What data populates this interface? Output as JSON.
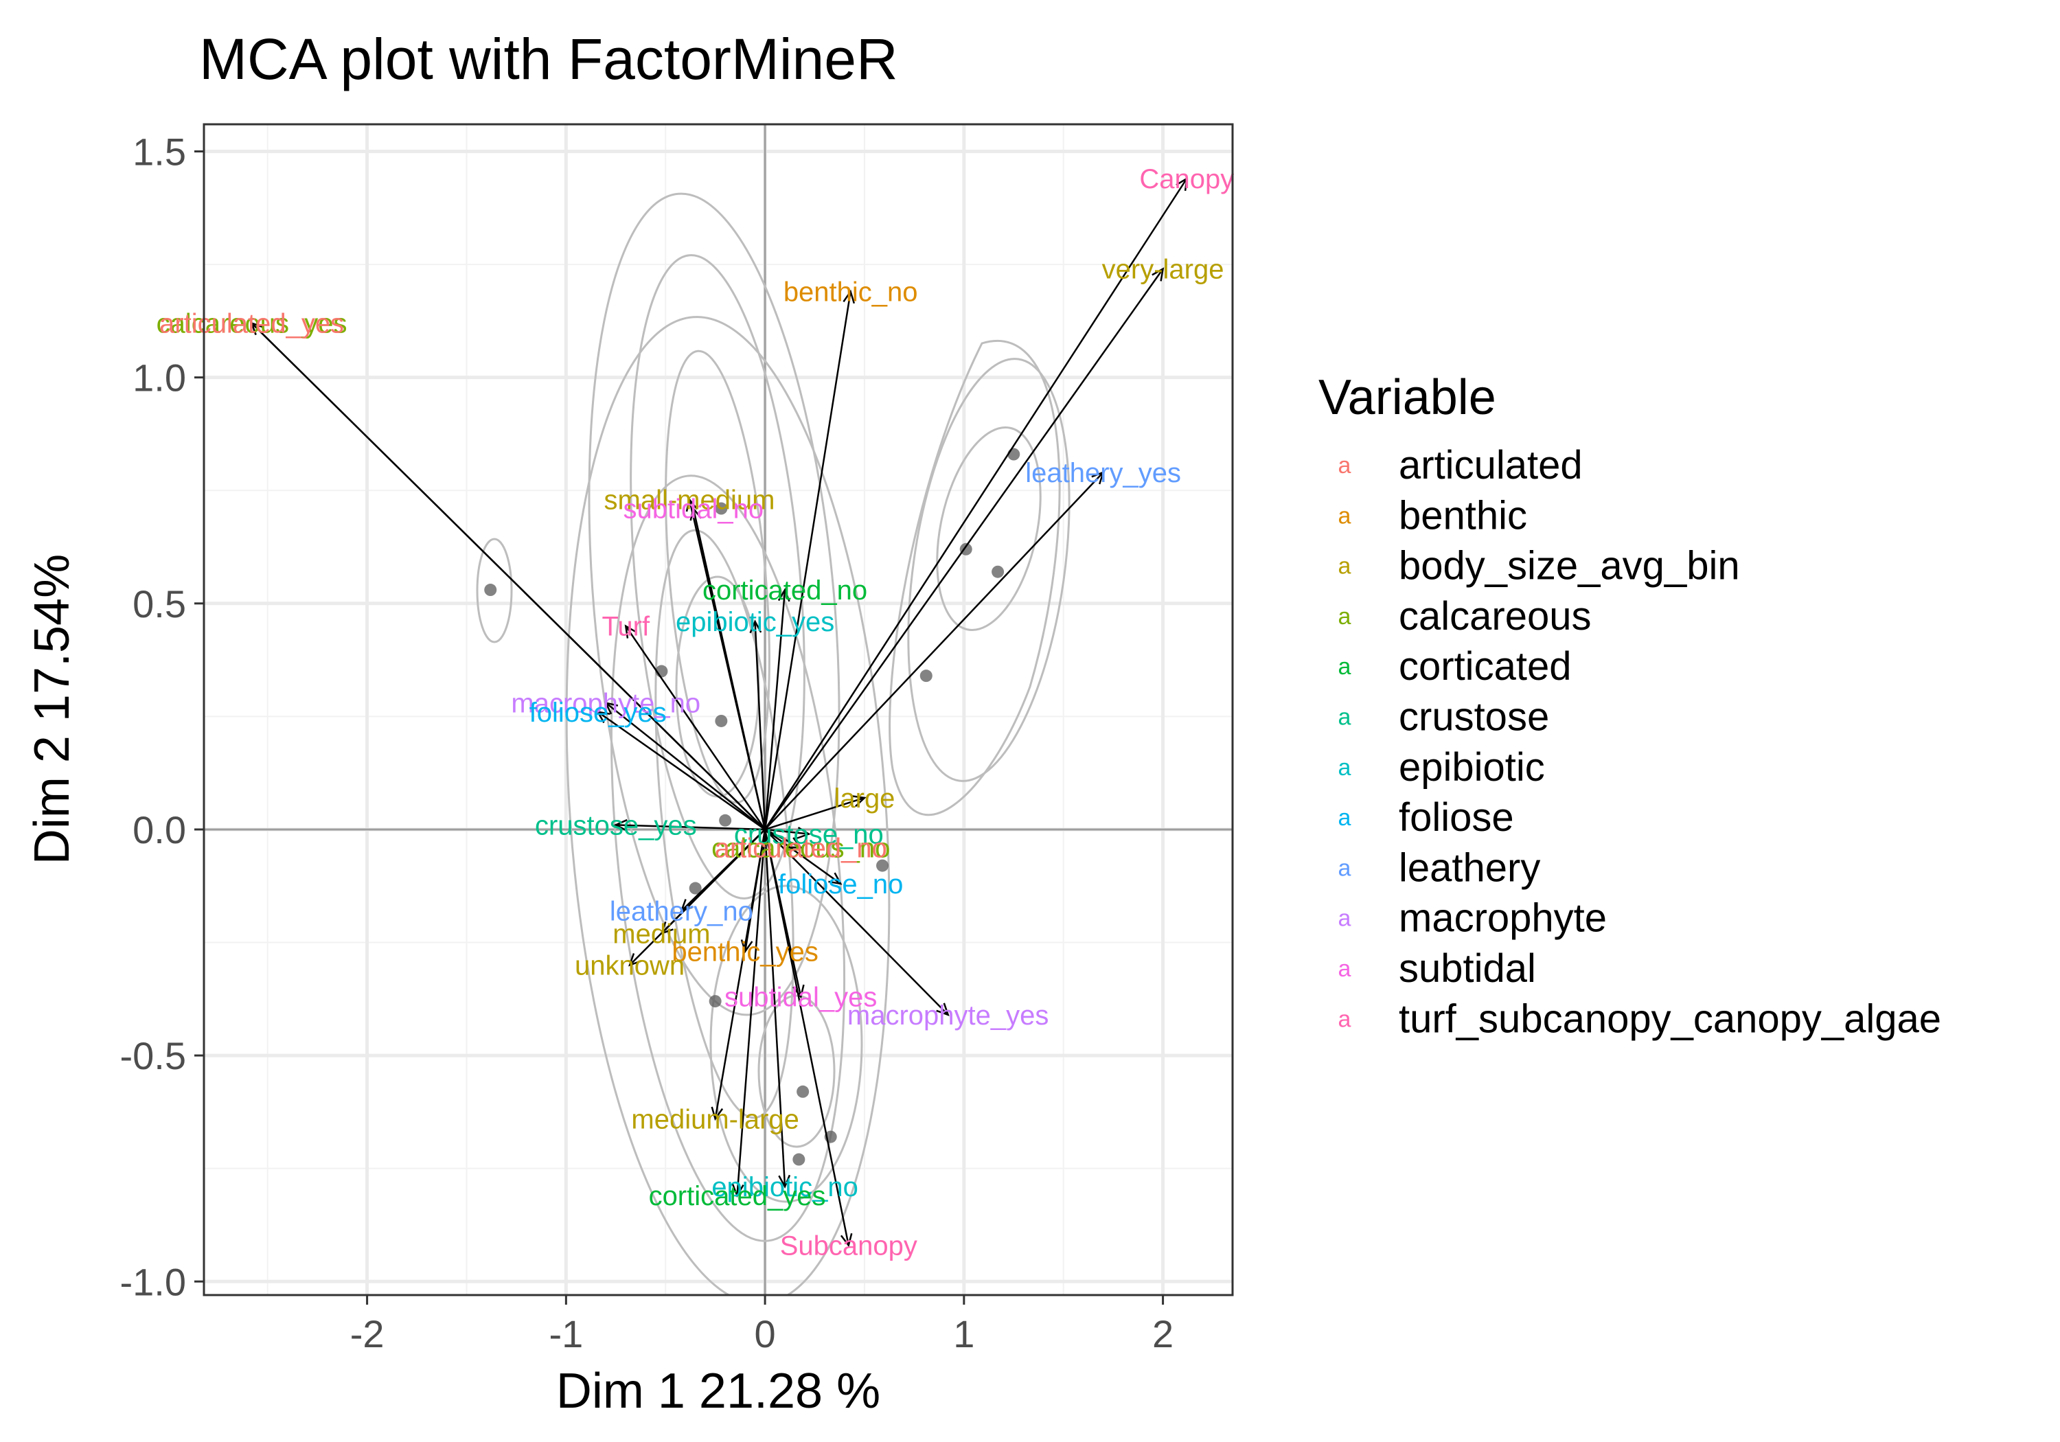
{
  "chart_data": {
    "type": "scatter",
    "title": "MCA plot with FactorMineR",
    "xlabel": "Dim 1 21.28 %",
    "ylabel": "Dim 2 17.54%",
    "xlim": [
      -2.82,
      2.35
    ],
    "ylim": [
      -1.03,
      1.56
    ],
    "x_ticks": [
      -2,
      -1,
      0,
      1,
      2
    ],
    "y_ticks": [
      -1.0,
      -0.5,
      0.0,
      0.5,
      1.0,
      1.5
    ],
    "x_tick_labels": [
      "-2",
      "-1",
      "0",
      "1",
      "2"
    ],
    "y_tick_labels": [
      "-1.0",
      "-0.5",
      "0.0",
      "0.5",
      "1.0",
      "1.5"
    ],
    "grid": true,
    "reference_lines": {
      "x": 0,
      "y": 0
    },
    "legend": {
      "title": "Variable",
      "position": "right",
      "key_glyph": "a",
      "entries": [
        {
          "name": "articulated",
          "color": "#F8766D"
        },
        {
          "name": "benthic",
          "color": "#DE8C00"
        },
        {
          "name": "body_size_avg_bin",
          "color": "#B79F00"
        },
        {
          "name": "calcareous",
          "color": "#7CAE00"
        },
        {
          "name": "corticated",
          "color": "#00BA38"
        },
        {
          "name": "crustose",
          "color": "#00C08B"
        },
        {
          "name": "epibiotic",
          "color": "#00BFC4"
        },
        {
          "name": "foliose",
          "color": "#00B4F0"
        },
        {
          "name": "leathery",
          "color": "#619CFF"
        },
        {
          "name": "macrophyte",
          "color": "#C77CFF"
        },
        {
          "name": "subtidal",
          "color": "#F564E3"
        },
        {
          "name": "turf_subcanopy_canopy_algae",
          "color": "#FF64B0"
        }
      ]
    },
    "arrows": [
      {
        "label": "Canopy",
        "x": 2.12,
        "y": 1.44,
        "variable": "turf_subcanopy_canopy_algae",
        "color": "#FF64B0"
      },
      {
        "label": "very-large",
        "x": 2.0,
        "y": 1.24,
        "variable": "body_size_avg_bin",
        "color": "#B79F00"
      },
      {
        "label": "benthic_no",
        "x": 0.43,
        "y": 1.19,
        "variable": "benthic",
        "color": "#DE8C00"
      },
      {
        "label": "calcareous_yes",
        "x": -2.58,
        "y": 1.12,
        "variable": "calcareous",
        "color": "#7CAE00"
      },
      {
        "label": "articulated_yes",
        "x": -2.58,
        "y": 1.12,
        "variable": "articulated",
        "color": "#F8766D"
      },
      {
        "label": "leathery_yes",
        "x": 1.7,
        "y": 0.79,
        "variable": "leathery",
        "color": "#619CFF"
      },
      {
        "label": "small-medium",
        "x": -0.38,
        "y": 0.73,
        "variable": "body_size_avg_bin",
        "color": "#B79F00"
      },
      {
        "label": "subtidal_no",
        "x": -0.36,
        "y": 0.71,
        "variable": "subtidal",
        "color": "#F564E3"
      },
      {
        "label": "corticated_no",
        "x": 0.1,
        "y": 0.53,
        "variable": "corticated",
        "color": "#00BA38"
      },
      {
        "label": "Turf",
        "x": -0.7,
        "y": 0.45,
        "variable": "turf_subcanopy_canopy_algae",
        "color": "#FF64B0"
      },
      {
        "label": "epibiotic_yes",
        "x": -0.05,
        "y": 0.46,
        "variable": "epibiotic",
        "color": "#00BFC4"
      },
      {
        "label": "macrophyte_no",
        "x": -0.8,
        "y": 0.28,
        "variable": "macrophyte",
        "color": "#C77CFF"
      },
      {
        "label": "foliose_yes",
        "x": -0.84,
        "y": 0.26,
        "variable": "foliose",
        "color": "#00B4F0"
      },
      {
        "label": "large",
        "x": 0.5,
        "y": 0.07,
        "variable": "body_size_avg_bin",
        "color": "#B79F00"
      },
      {
        "label": "crustose_yes",
        "x": -0.75,
        "y": 0.01,
        "variable": "crustose",
        "color": "#00C08B"
      },
      {
        "label": "crustose_no",
        "x": 0.22,
        "y": -0.01,
        "variable": "crustose",
        "color": "#00C08B"
      },
      {
        "label": "calcareous_no",
        "x": 0.18,
        "y": -0.04,
        "variable": "calcareous",
        "color": "#7CAE00"
      },
      {
        "label": "articulated_no",
        "x": 0.18,
        "y": -0.04,
        "variable": "articulated",
        "color": "#F8766D"
      },
      {
        "label": "foliose_no",
        "x": 0.38,
        "y": -0.12,
        "variable": "foliose",
        "color": "#00B4F0"
      },
      {
        "label": "leathery_no",
        "x": -0.42,
        "y": -0.18,
        "variable": "leathery",
        "color": "#619CFF"
      },
      {
        "label": "medium",
        "x": -0.52,
        "y": -0.23,
        "variable": "body_size_avg_bin",
        "color": "#B79F00"
      },
      {
        "label": "benthic_yes",
        "x": -0.1,
        "y": -0.27,
        "variable": "benthic",
        "color": "#DE8C00"
      },
      {
        "label": "unknown",
        "x": -0.68,
        "y": -0.3,
        "variable": "body_size_avg_bin",
        "color": "#B79F00"
      },
      {
        "label": "subtidal_yes",
        "x": 0.18,
        "y": -0.37,
        "variable": "subtidal",
        "color": "#F564E3"
      },
      {
        "label": "macrophyte_yes",
        "x": 0.92,
        "y": -0.41,
        "variable": "macrophyte",
        "color": "#C77CFF"
      },
      {
        "label": "medium-large",
        "x": -0.25,
        "y": -0.64,
        "variable": "body_size_avg_bin",
        "color": "#B79F00"
      },
      {
        "label": "epibiotic_no",
        "x": 0.1,
        "y": -0.79,
        "variable": "epibiotic",
        "color": "#00BFC4"
      },
      {
        "label": "corticated_yes",
        "x": -0.14,
        "y": -0.81,
        "variable": "corticated",
        "color": "#00BA38"
      },
      {
        "label": "Subcanopy",
        "x": 0.42,
        "y": -0.92,
        "variable": "turf_subcanopy_canopy_algae",
        "color": "#FF64B0"
      }
    ],
    "points": [
      {
        "x": -1.38,
        "y": 0.53
      },
      {
        "x": -0.22,
        "y": 0.71
      },
      {
        "x": -0.52,
        "y": 0.35
      },
      {
        "x": -0.22,
        "y": 0.24
      },
      {
        "x": -0.2,
        "y": 0.02
      },
      {
        "x": -0.35,
        "y": -0.13
      },
      {
        "x": -0.25,
        "y": -0.38
      },
      {
        "x": 1.25,
        "y": 0.83
      },
      {
        "x": 1.01,
        "y": 0.62
      },
      {
        "x": 1.17,
        "y": 0.57
      },
      {
        "x": 0.81,
        "y": 0.34
      },
      {
        "x": 0.59,
        "y": -0.08
      },
      {
        "x": 0.19,
        "y": -0.58
      },
      {
        "x": 0.33,
        "y": -0.68
      },
      {
        "x": 0.17,
        "y": -0.73
      }
    ]
  }
}
